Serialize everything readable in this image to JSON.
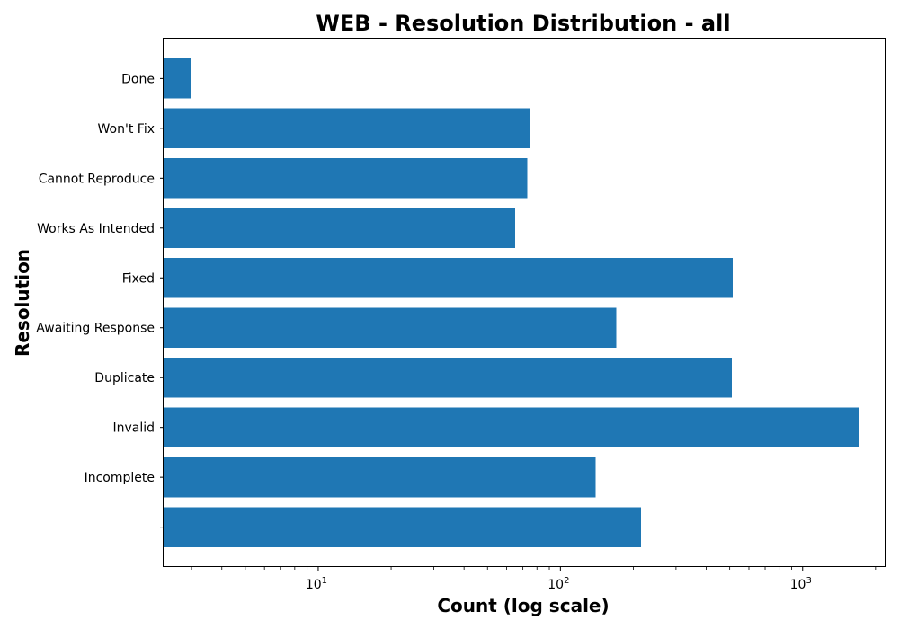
{
  "chart_data": {
    "type": "bar",
    "orientation": "horizontal",
    "title": "WEB - Resolution Distribution - all",
    "xlabel": "Count (log scale)",
    "ylabel": "Resolution",
    "x_scale": "log",
    "xlim": [
      2.3,
      2200
    ],
    "x_ticks": [
      {
        "base": "10",
        "exp": "1",
        "value": 10
      },
      {
        "base": "10",
        "exp": "2",
        "value": 100
      },
      {
        "base": "10",
        "exp": "3",
        "value": 1000
      }
    ],
    "categories": [
      "",
      "Incomplete",
      "Invalid",
      "Duplicate",
      "Awaiting Response",
      "Fixed",
      "Works As Intended",
      "Cannot Reproduce",
      "Won't Fix",
      "Done"
    ],
    "values": [
      215,
      140,
      1700,
      510,
      170,
      515,
      65,
      73,
      75,
      3
    ],
    "bar_color": "#1f77b4",
    "grid": false,
    "legend": "none"
  }
}
